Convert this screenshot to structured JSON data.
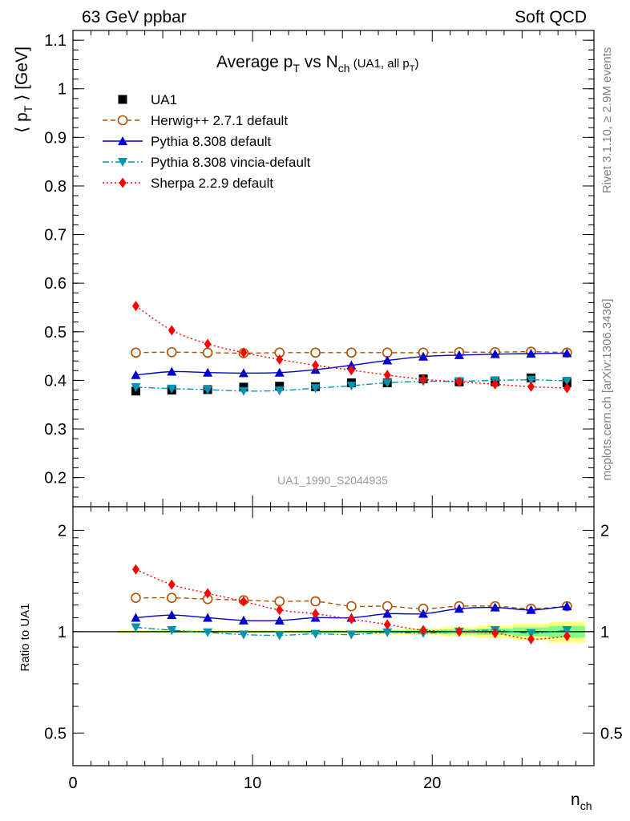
{
  "header": {
    "left": "63 GeV ppbar",
    "right": "Soft QCD"
  },
  "side_labels": {
    "rivet": "Rivet 3.1.10, ≥ 2.9M events",
    "mcplots": "mcplots.cern.ch [arXiv:1306.3436]"
  },
  "chart_data": [
    {
      "type": "line",
      "title": {
        "main": "Average p",
        "main_sub": "T",
        "mid": " vs N",
        "mid_sub": "ch",
        "small": " (UA1, all p",
        "small_sub": "T",
        "small_end": ")"
      },
      "ylabel": {
        "open": "⟨ p",
        "sub": "T",
        "close": " ⟩ [GeV]"
      },
      "watermark": "UA1_1990_S2044935",
      "ylim": [
        0.14,
        1.12
      ],
      "yticks": [
        "0.2",
        "0.3",
        "0.4",
        "0.5",
        "0.6",
        "0.7",
        "0.8",
        "0.9",
        "1",
        "1.1"
      ],
      "ytick_values": [
        0.2,
        0.3,
        0.4,
        0.5,
        0.6,
        0.7,
        0.8,
        0.9,
        1.0,
        1.1
      ],
      "grid": false,
      "legend": "top-left",
      "x": [
        3.5,
        5.5,
        7.5,
        9.5,
        11.5,
        13.5,
        15.5,
        17.5,
        19.5,
        21.5,
        23.5,
        25.5,
        27.5
      ],
      "series": [
        {
          "name": "UA1",
          "color": "#000000",
          "marker": "square",
          "line": "none",
          "values": [
            0.378,
            0.38,
            0.381,
            0.386,
            0.388,
            0.387,
            0.395,
            0.395,
            0.403,
            0.397,
            0.397,
            0.405,
            0.395
          ]
        },
        {
          "name": "Herwig++ 2.7.1 default",
          "color": "#b05000",
          "marker": "circle-open",
          "line": "dashed",
          "values": [
            0.457,
            0.458,
            0.457,
            0.456,
            0.457,
            0.457,
            0.457,
            0.457,
            0.457,
            0.458,
            0.458,
            0.459,
            0.457
          ]
        },
        {
          "name": "Pythia 8.308 default",
          "color": "#0000d0",
          "marker": "triangle-up",
          "line": "solid",
          "values": [
            0.411,
            0.418,
            0.416,
            0.415,
            0.416,
            0.422,
            0.431,
            0.441,
            0.449,
            0.452,
            0.454,
            0.455,
            0.456
          ]
        },
        {
          "name": "Pythia 8.308 vincia-default",
          "color": "#0093b0",
          "marker": "triangle-down",
          "line": "dashdot",
          "values": [
            0.386,
            0.383,
            0.381,
            0.378,
            0.379,
            0.384,
            0.389,
            0.395,
            0.398,
            0.398,
            0.4,
            0.401,
            0.399
          ]
        },
        {
          "name": "Sherpa 2.2.9 default",
          "color": "#ff0000",
          "marker": "diamond",
          "line": "dotted",
          "values": [
            0.553,
            0.503,
            0.475,
            0.457,
            0.443,
            0.431,
            0.421,
            0.411,
            0.402,
            0.397,
            0.392,
            0.387,
            0.384
          ]
        }
      ]
    },
    {
      "type": "line",
      "ylabel": "Ratio to UA1",
      "xlabel": {
        "main": "n",
        "sub": "ch"
      },
      "ylim": [
        0.4,
        2.35
      ],
      "log_scale": true,
      "yticks": [
        "0.5",
        "1",
        "2"
      ],
      "ytick_values": [
        0.5,
        1,
        2
      ],
      "xlim": [
        0,
        29
      ],
      "xticks": [
        "0",
        "10",
        "20"
      ],
      "xtick_values": [
        0,
        10,
        20
      ],
      "grid": false,
      "reference_line": 1,
      "uncertainty_band": {
        "x_edges": [
          2.5,
          4.5,
          6.5,
          8.5,
          10.5,
          12.5,
          14.5,
          16.5,
          18.5,
          20.5,
          22.5,
          24.5,
          26.5,
          28.5
        ],
        "outer_colors": "#ffff80",
        "inner_colors": "#80ff80",
        "outer_halfwidth": [
          0.01,
          0.01,
          0.01,
          0.01,
          0.01,
          0.012,
          0.014,
          0.018,
          0.024,
          0.032,
          0.042,
          0.055,
          0.07
        ],
        "inner_halfwidth": [
          0.005,
          0.005,
          0.005,
          0.005,
          0.005,
          0.006,
          0.007,
          0.009,
          0.012,
          0.016,
          0.021,
          0.03,
          0.04
        ]
      },
      "x": [
        3.5,
        5.5,
        7.5,
        9.5,
        11.5,
        13.5,
        15.5,
        17.5,
        19.5,
        21.5,
        23.5,
        25.5,
        27.5
      ],
      "series": [
        {
          "name": "Herwig++ 2.7.1 default",
          "color": "#b05000",
          "marker": "circle-open",
          "line": "dashed",
          "values": [
            1.26,
            1.26,
            1.25,
            1.24,
            1.23,
            1.23,
            1.19,
            1.19,
            1.17,
            1.19,
            1.19,
            1.17,
            1.19
          ]
        },
        {
          "name": "Pythia 8.308 default",
          "color": "#0000d0",
          "marker": "triangle-up",
          "line": "solid",
          "values": [
            1.1,
            1.12,
            1.1,
            1.08,
            1.08,
            1.1,
            1.1,
            1.13,
            1.13,
            1.17,
            1.18,
            1.16,
            1.19
          ]
        },
        {
          "name": "Pythia 8.308 vincia-default",
          "color": "#0093b0",
          "marker": "triangle-down",
          "line": "dashdot",
          "values": [
            1.03,
            1.01,
            0.995,
            0.98,
            0.975,
            0.985,
            0.98,
            0.995,
            0.99,
            1.0,
            1.01,
            0.99,
            1.01
          ]
        },
        {
          "name": "Sherpa 2.2.9 default",
          "color": "#ff0000",
          "marker": "diamond",
          "line": "dotted",
          "values": [
            1.53,
            1.38,
            1.3,
            1.23,
            1.16,
            1.13,
            1.09,
            1.05,
            1.01,
            1.0,
            0.99,
            0.95,
            0.97
          ]
        }
      ]
    }
  ]
}
